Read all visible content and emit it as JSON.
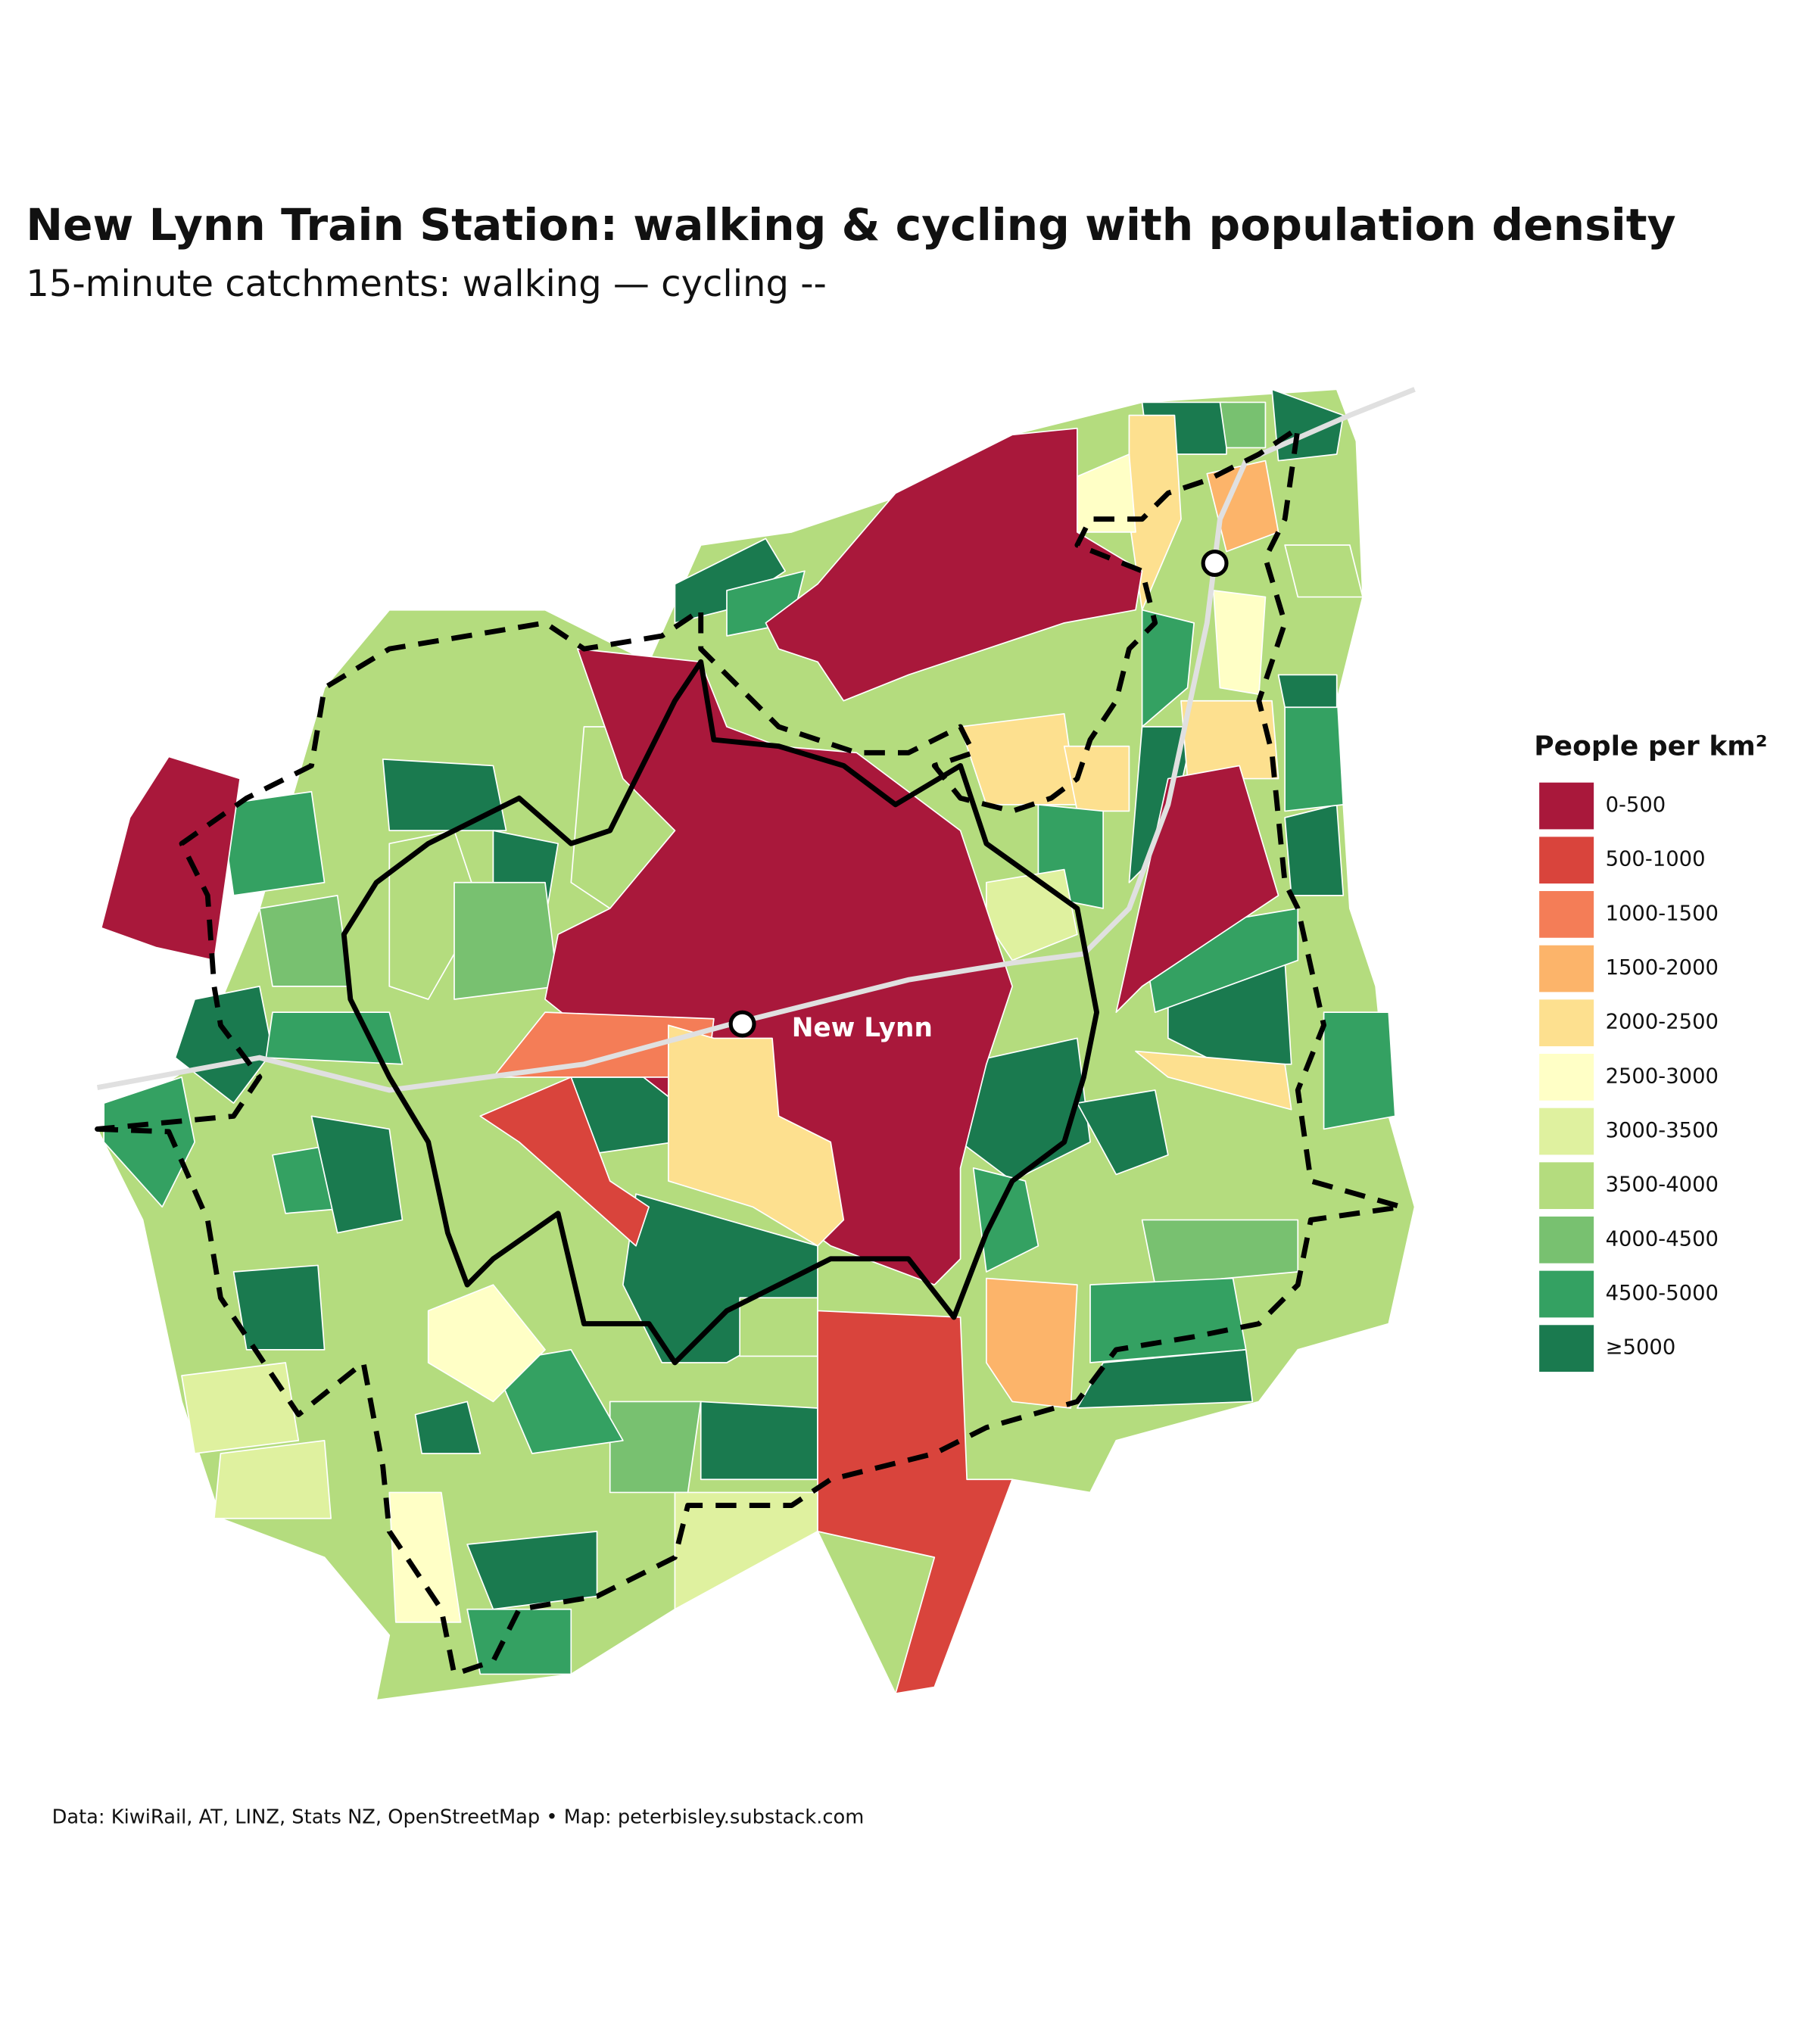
{
  "header": {
    "title": "New Lynn Train Station: walking & cycling with population density",
    "subtitle": "15-minute catchments: walking — cycling --"
  },
  "map": {
    "station_label": "New Lynn"
  },
  "legend": {
    "title": "People per km²",
    "items": [
      {
        "label": "0-500",
        "color": "#a9183b"
      },
      {
        "label": "500-1000",
        "color": "#d9443c"
      },
      {
        "label": "1000-1500",
        "color": "#f47d57"
      },
      {
        "label": "1500-2000",
        "color": "#fcb46a"
      },
      {
        "label": "2000-2500",
        "color": "#fde08f"
      },
      {
        "label": "2500-3000",
        "color": "#ffffc6"
      },
      {
        "label": "3000-3500",
        "color": "#dff19f"
      },
      {
        "label": "3500-4000",
        "color": "#b4dc7e"
      },
      {
        "label": "4000-4500",
        "color": "#78c170"
      },
      {
        "label": "4500-5000",
        "color": "#34a162"
      },
      {
        "label": "≥5000",
        "color": "#1a7a4f"
      }
    ]
  },
  "footer": {
    "source": "Data: KiwiRail, AT, LINZ, Stats NZ, OpenStreetMap • Map: peterbisley.substack.com"
  }
}
